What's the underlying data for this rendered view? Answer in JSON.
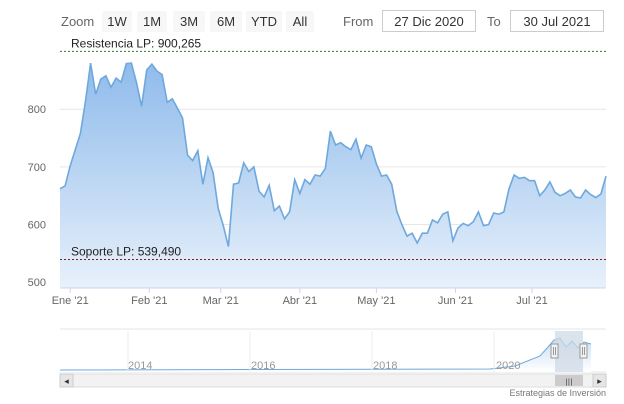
{
  "toolbar": {
    "zoom_label": "Zoom",
    "buttons": [
      "1W",
      "1M",
      "3M",
      "6M",
      "YTD",
      "All"
    ],
    "from_label": "From",
    "from_value": "27 Dic 2020",
    "to_label": "To",
    "to_value": "30 Jul 2021"
  },
  "credit": "Estrategias de Inversión",
  "colors": {
    "line": "#6fa8dc",
    "fill_top": "#8ab8ea",
    "fill_bottom": "#e8f1fb",
    "resistance": "#2e7d2e",
    "support": "#8b1c1c",
    "navigator_fill": "#c9ddf3",
    "navigator_mask": "#cfd9e6"
  },
  "chart_data": {
    "type": "area",
    "xlabel": "",
    "ylabel": "",
    "ylim": [
      490,
      920
    ],
    "xlim": [
      "2020-12-28",
      "2021-07-30"
    ],
    "y_ticks": [
      500,
      600,
      700,
      800
    ],
    "x_ticks": [
      {
        "date": "2021-01-01",
        "label": "Ene '21"
      },
      {
        "date": "2021-02-01",
        "label": "Feb '21"
      },
      {
        "date": "2021-03-01",
        "label": "Mar '21"
      },
      {
        "date": "2021-04-01",
        "label": "Abr '21"
      },
      {
        "date": "2021-05-01",
        "label": "May '21"
      },
      {
        "date": "2021-06-01",
        "label": "Jun '21"
      },
      {
        "date": "2021-07-01",
        "label": "Jul '21"
      }
    ],
    "grid": true,
    "annotations": [
      {
        "kind": "resistance",
        "label": "Resistencia LP: 900,265",
        "value": 900.265
      },
      {
        "kind": "support",
        "label": "Soporte LP: 539,490",
        "value": 539.49
      }
    ],
    "series": [
      {
        "x": [
          "2020-12-28",
          "2020-12-30",
          "2021-01-01",
          "2021-01-03",
          "2021-01-05",
          "2021-01-07",
          "2021-01-09",
          "2021-01-11",
          "2021-01-13",
          "2021-01-15",
          "2021-01-17",
          "2021-01-19",
          "2021-01-21",
          "2021-01-23",
          "2021-01-25",
          "2021-01-27",
          "2021-01-29",
          "2021-01-31",
          "2021-02-02",
          "2021-02-04",
          "2021-02-06",
          "2021-02-08",
          "2021-02-10",
          "2021-02-12",
          "2021-02-14",
          "2021-02-16",
          "2021-02-18",
          "2021-02-20",
          "2021-02-22",
          "2021-02-24",
          "2021-02-26",
          "2021-02-28",
          "2021-03-02",
          "2021-03-04",
          "2021-03-06",
          "2021-03-08",
          "2021-03-10",
          "2021-03-12",
          "2021-03-14",
          "2021-03-16",
          "2021-03-18",
          "2021-03-20",
          "2021-03-22",
          "2021-03-24",
          "2021-03-26",
          "2021-03-28",
          "2021-03-30",
          "2021-04-01",
          "2021-04-03",
          "2021-04-05",
          "2021-04-07",
          "2021-04-09",
          "2021-04-11",
          "2021-04-13",
          "2021-04-15",
          "2021-04-17",
          "2021-04-19",
          "2021-04-21",
          "2021-04-23",
          "2021-04-25",
          "2021-04-27",
          "2021-04-29",
          "2021-05-01",
          "2021-05-03",
          "2021-05-05",
          "2021-05-07",
          "2021-05-09",
          "2021-05-11",
          "2021-05-13",
          "2021-05-15",
          "2021-05-17",
          "2021-05-19",
          "2021-05-21",
          "2021-05-23",
          "2021-05-25",
          "2021-05-27",
          "2021-05-29",
          "2021-05-31",
          "2021-06-02",
          "2021-06-04",
          "2021-06-06",
          "2021-06-08",
          "2021-06-10",
          "2021-06-12",
          "2021-06-14",
          "2021-06-16",
          "2021-06-18",
          "2021-06-20",
          "2021-06-22",
          "2021-06-24",
          "2021-06-26",
          "2021-06-28",
          "2021-06-30",
          "2021-07-02",
          "2021-07-04",
          "2021-07-06",
          "2021-07-08",
          "2021-07-10",
          "2021-07-12",
          "2021-07-14",
          "2021-07-16",
          "2021-07-18",
          "2021-07-20",
          "2021-07-22",
          "2021-07-24",
          "2021-07-26",
          "2021-07-28",
          "2021-07-30"
        ],
        "values": [
          662,
          667,
          702,
          730,
          758,
          814,
          880,
          826,
          852,
          858,
          838,
          854,
          847,
          879,
          880,
          846,
          805,
          868,
          878,
          866,
          860,
          812,
          818,
          802,
          785,
          720,
          711,
          728,
          670,
          716,
          690,
          628,
          598,
          562,
          670,
          672,
          707,
          692,
          700,
          658,
          648,
          668,
          624,
          632,
          610,
          622,
          678,
          654,
          678,
          670,
          686,
          684,
          697,
          762,
          738,
          742,
          735,
          730,
          748,
          715,
          738,
          735,
          705,
          684,
          686,
          670,
          623,
          600,
          580,
          585,
          568,
          585,
          585,
          608,
          603,
          618,
          622,
          572,
          594,
          602,
          598,
          605,
          622,
          598,
          600,
          620,
          618,
          622,
          662,
          686,
          680,
          682,
          676,
          676,
          650,
          660,
          674,
          656,
          650,
          654,
          660,
          648,
          646,
          660,
          652,
          647,
          653,
          684
        ]
      }
    ]
  },
  "navigator": {
    "year_labels": [
      "2014",
      "2016",
      "2018",
      "2020"
    ],
    "scroll_thumb_glyph": "|||",
    "left_arrow_glyph": "◂",
    "right_arrow_glyph": "▸"
  }
}
